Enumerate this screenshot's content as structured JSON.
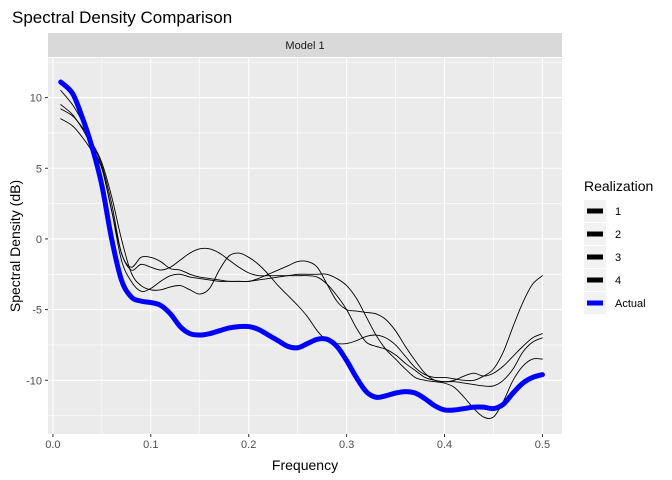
{
  "chart_data": {
    "type": "line",
    "title": "Spectral Density Comparison",
    "panel_label": "Model 1",
    "xlabel": "Frequency",
    "ylabel": "Spectral Density (dB)",
    "xlim": [
      -0.005,
      0.52
    ],
    "ylim": [
      -13.8,
      12.8
    ],
    "x_ticks": [
      0.0,
      0.1,
      0.2,
      0.3,
      0.4,
      0.5
    ],
    "x_tick_labels": [
      "0.0",
      "0.1",
      "0.2",
      "0.3",
      "0.4",
      "0.5"
    ],
    "y_ticks": [
      -10,
      -5,
      0,
      5,
      10
    ],
    "y_tick_labels": [
      "-10",
      "-5",
      "0",
      "5",
      "10"
    ],
    "grid": true,
    "legend": {
      "title": "Realization",
      "placement": "right"
    },
    "colors": {
      "realization": "#000000",
      "actual": "#0000ff",
      "panel_bg": "#ebebeb",
      "strip_bg": "#d9d9d9",
      "grid": "#ffffff"
    },
    "x": [
      0.008,
      0.02,
      0.03,
      0.04,
      0.05,
      0.06,
      0.07,
      0.08,
      0.09,
      0.1,
      0.11,
      0.12,
      0.13,
      0.14,
      0.15,
      0.16,
      0.17,
      0.18,
      0.19,
      0.2,
      0.21,
      0.22,
      0.23,
      0.24,
      0.25,
      0.26,
      0.27,
      0.28,
      0.29,
      0.3,
      0.31,
      0.32,
      0.33,
      0.34,
      0.35,
      0.36,
      0.37,
      0.38,
      0.39,
      0.4,
      0.41,
      0.42,
      0.43,
      0.44,
      0.45,
      0.46,
      0.47,
      0.48,
      0.49,
      0.5
    ],
    "series": [
      {
        "name": "1",
        "values": [
          9.5,
          8.8,
          7.8,
          6.5,
          5.0,
          2.0,
          -1.0,
          -2.2,
          -1.8,
          -2.0,
          -2.2,
          -2.0,
          -1.5,
          -1.0,
          -0.7,
          -0.7,
          -1.0,
          -1.5,
          -2.0,
          -2.4,
          -2.6,
          -2.6,
          -2.6,
          -2.6,
          -2.6,
          -2.6,
          -2.7,
          -3.2,
          -4.0,
          -5.0,
          -6.3,
          -7.3,
          -7.6,
          -7.8,
          -8.2,
          -8.8,
          -9.3,
          -9.8,
          -10.0,
          -10.1,
          -10.1,
          -10.2,
          -10.3,
          -10.4,
          -10.4,
          -10.0,
          -9.2,
          -8.0,
          -7.3,
          -7.0
        ]
      },
      {
        "name": "2",
        "values": [
          10.5,
          9.5,
          8.3,
          6.8,
          5.2,
          2.5,
          -1.0,
          -2.0,
          -1.3,
          -1.3,
          -1.6,
          -2.1,
          -2.2,
          -2.5,
          -2.7,
          -2.8,
          -2.9,
          -3.0,
          -3.0,
          -3.0,
          -2.8,
          -2.5,
          -2.2,
          -1.9,
          -1.6,
          -1.6,
          -2.0,
          -3.2,
          -4.4,
          -5.0,
          -5.1,
          -5.2,
          -5.3,
          -5.7,
          -6.5,
          -7.6,
          -8.6,
          -9.5,
          -10.0,
          -10.1,
          -10.0,
          -9.7,
          -9.5,
          -9.7,
          -9.5,
          -9.0,
          -8.3,
          -7.6,
          -7.0,
          -6.7
        ]
      },
      {
        "name": "3",
        "values": [
          8.5,
          8.0,
          7.2,
          6.2,
          5.0,
          2.0,
          -1.5,
          -3.0,
          -3.7,
          -3.5,
          -3.0,
          -2.6,
          -2.5,
          -2.7,
          -2.8,
          -2.9,
          -3.0,
          -3.0,
          -3.0,
          -3.0,
          -2.9,
          -2.8,
          -2.7,
          -2.6,
          -2.5,
          -2.5,
          -2.5,
          -2.5,
          -2.8,
          -3.3,
          -4.2,
          -5.5,
          -6.8,
          -7.8,
          -8.5,
          -9.2,
          -9.8,
          -10.0,
          -10.1,
          -10.2,
          -10.5,
          -11.2,
          -12.0,
          -12.6,
          -12.6,
          -11.5,
          -10.0,
          -9.0,
          -8.5,
          -8.5
        ]
      },
      {
        "name": "4",
        "values": [
          9.2,
          8.7,
          7.9,
          6.8,
          5.4,
          3.0,
          0.0,
          -2.4,
          -3.3,
          -3.6,
          -3.6,
          -3.4,
          -3.3,
          -3.6,
          -3.9,
          -3.5,
          -2.2,
          -1.2,
          -1.0,
          -1.3,
          -1.8,
          -2.5,
          -3.3,
          -4.0,
          -4.7,
          -5.5,
          -6.5,
          -7.2,
          -7.4,
          -7.4,
          -7.2,
          -6.9,
          -6.8,
          -7.0,
          -7.5,
          -8.3,
          -9.1,
          -9.6,
          -9.8,
          -9.8,
          -9.9,
          -10.0,
          -10.0,
          -9.7,
          -9.2,
          -8.0,
          -6.2,
          -4.5,
          -3.2,
          -2.6
        ]
      },
      {
        "name": "Actual",
        "values": [
          11.1,
          10.3,
          8.6,
          6.5,
          3.8,
          0.0,
          -2.9,
          -4.1,
          -4.4,
          -4.5,
          -4.7,
          -5.3,
          -6.2,
          -6.7,
          -6.8,
          -6.7,
          -6.5,
          -6.3,
          -6.2,
          -6.2,
          -6.4,
          -6.8,
          -7.2,
          -7.6,
          -7.7,
          -7.4,
          -7.1,
          -7.1,
          -7.6,
          -8.6,
          -9.8,
          -10.8,
          -11.2,
          -11.1,
          -10.9,
          -10.8,
          -10.9,
          -11.3,
          -11.8,
          -12.1,
          -12.1,
          -12.0,
          -11.9,
          -11.9,
          -12.0,
          -11.7,
          -10.9,
          -10.2,
          -9.8,
          -9.6
        ]
      }
    ]
  }
}
